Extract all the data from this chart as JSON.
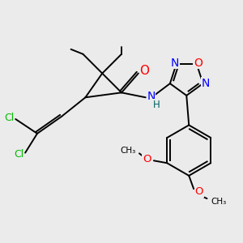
{
  "bg_color": "#ebebeb",
  "atom_colors": {
    "C": "#000000",
    "N": "#0000ff",
    "O": "#ff0000",
    "Cl": "#00bb00",
    "H": "#006060"
  },
  "bond_color": "#000000",
  "bond_width": 1.4
}
